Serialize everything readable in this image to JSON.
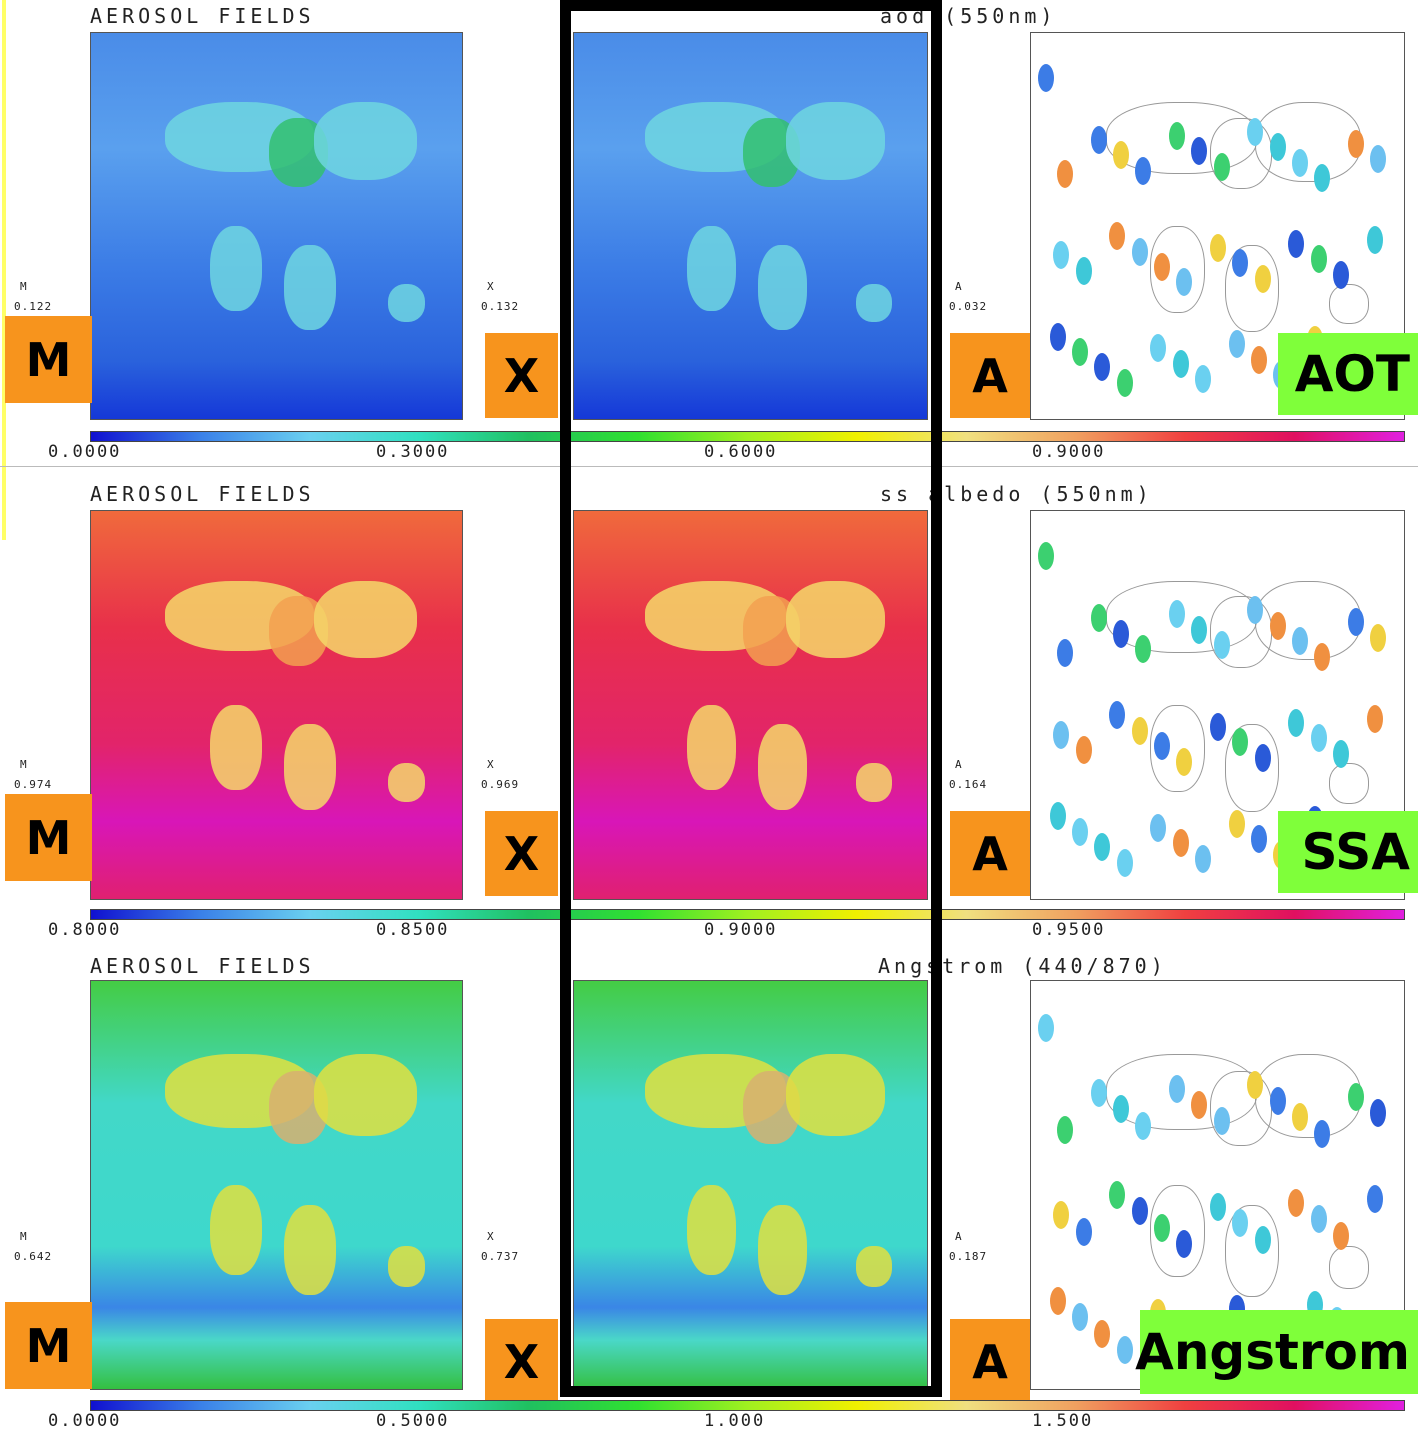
{
  "rows": [
    {
      "header_left": "AEROSOL FIELDS",
      "header_right": "aod (550nm)",
      "panels": [
        {
          "letter": "M",
          "value": "0.122",
          "badge": "M"
        },
        {
          "letter": "X",
          "value": "0.132",
          "badge": "X"
        },
        {
          "letter": "A",
          "value": "0.032",
          "badge": "A"
        }
      ],
      "tag": "AOT",
      "colorbar_labels": [
        "0.0000",
        "0.3000",
        "0.6000",
        "0.9000"
      ]
    },
    {
      "header_left": "AEROSOL FIELDS",
      "header_right": "ss albedo (550nm)",
      "panels": [
        {
          "letter": "M",
          "value": "0.974",
          "badge": "M"
        },
        {
          "letter": "X",
          "value": "0.969",
          "badge": "X"
        },
        {
          "letter": "A",
          "value": "0.164",
          "badge": "A"
        }
      ],
      "tag": "SSA",
      "colorbar_labels": [
        "0.8000",
        "0.8500",
        "0.9000",
        "0.9500"
      ]
    },
    {
      "header_left": "AEROSOL FIELDS",
      "header_right": "Angstrom (440/870)",
      "panels": [
        {
          "letter": "M",
          "value": "0.642",
          "badge": "M"
        },
        {
          "letter": "X",
          "value": "0.737",
          "badge": "X"
        },
        {
          "letter": "A",
          "value": "0.187",
          "badge": "A"
        }
      ],
      "tag": "Angstrom",
      "colorbar_labels": [
        "0.0000",
        "0.5000",
        "1.000",
        "1.500"
      ]
    }
  ]
}
